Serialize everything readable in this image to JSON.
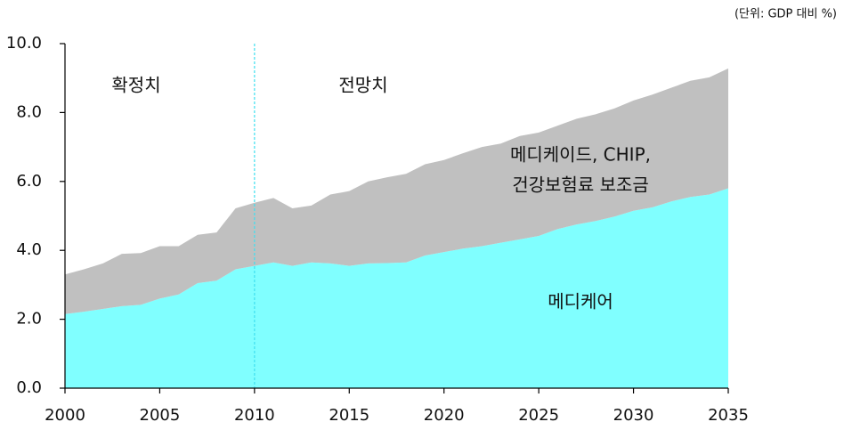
{
  "chart_data": {
    "type": "stacked_area",
    "unit_note": "(단위: GDP 대비 %)",
    "annotations": [
      "확정치",
      "전망치"
    ],
    "x": [
      2000,
      2001,
      2002,
      2003,
      2004,
      2005,
      2006,
      2007,
      2008,
      2009,
      2010,
      2011,
      2012,
      2013,
      2014,
      2015,
      2016,
      2017,
      2018,
      2019,
      2020,
      2021,
      2022,
      2023,
      2024,
      2025,
      2026,
      2027,
      2028,
      2029,
      2030,
      2031,
      2032,
      2033,
      2034,
      2035
    ],
    "series": [
      {
        "name": "메디케어",
        "color": "#80ffff",
        "values": [
          2.15,
          2.22,
          2.3,
          2.38,
          2.42,
          2.6,
          2.72,
          3.05,
          3.12,
          3.45,
          3.55,
          3.65,
          3.55,
          3.65,
          3.62,
          3.55,
          3.62,
          3.63,
          3.65,
          3.85,
          3.95,
          4.05,
          4.12,
          4.22,
          4.32,
          4.42,
          4.62,
          4.75,
          4.85,
          4.98,
          5.15,
          5.25,
          5.42,
          5.55,
          5.62,
          5.8
        ]
      },
      {
        "name_lines": [
          "메디케이드, CHIP,",
          "건강보험료 보조금"
        ],
        "color": "#c0c0c0",
        "values": [
          1.15,
          1.23,
          1.32,
          1.52,
          1.5,
          1.52,
          1.4,
          1.4,
          1.4,
          1.77,
          1.83,
          1.87,
          1.67,
          1.65,
          2.0,
          2.17,
          2.38,
          2.49,
          2.57,
          2.65,
          2.67,
          2.77,
          2.88,
          2.88,
          3.0,
          3.0,
          3.0,
          3.07,
          3.1,
          3.14,
          3.2,
          3.27,
          3.3,
          3.37,
          3.4,
          3.48
        ]
      }
    ],
    "divider_x": 2010,
    "divider_color": "#40e0f0",
    "xlim": [
      2000,
      2035
    ],
    "xticks": [
      2000,
      2005,
      2010,
      2015,
      2020,
      2025,
      2030,
      2035
    ],
    "ylim": [
      0,
      10
    ],
    "yticks": [
      {
        "value": 0,
        "label": "0.0"
      },
      {
        "value": 2,
        "label": "2.0"
      },
      {
        "value": 4,
        "label": "4.0"
      },
      {
        "value": 6,
        "label": "6.0"
      },
      {
        "value": 8,
        "label": "8.0"
      },
      {
        "value": 10,
        "label": "10.0"
      }
    ],
    "grid": false
  }
}
